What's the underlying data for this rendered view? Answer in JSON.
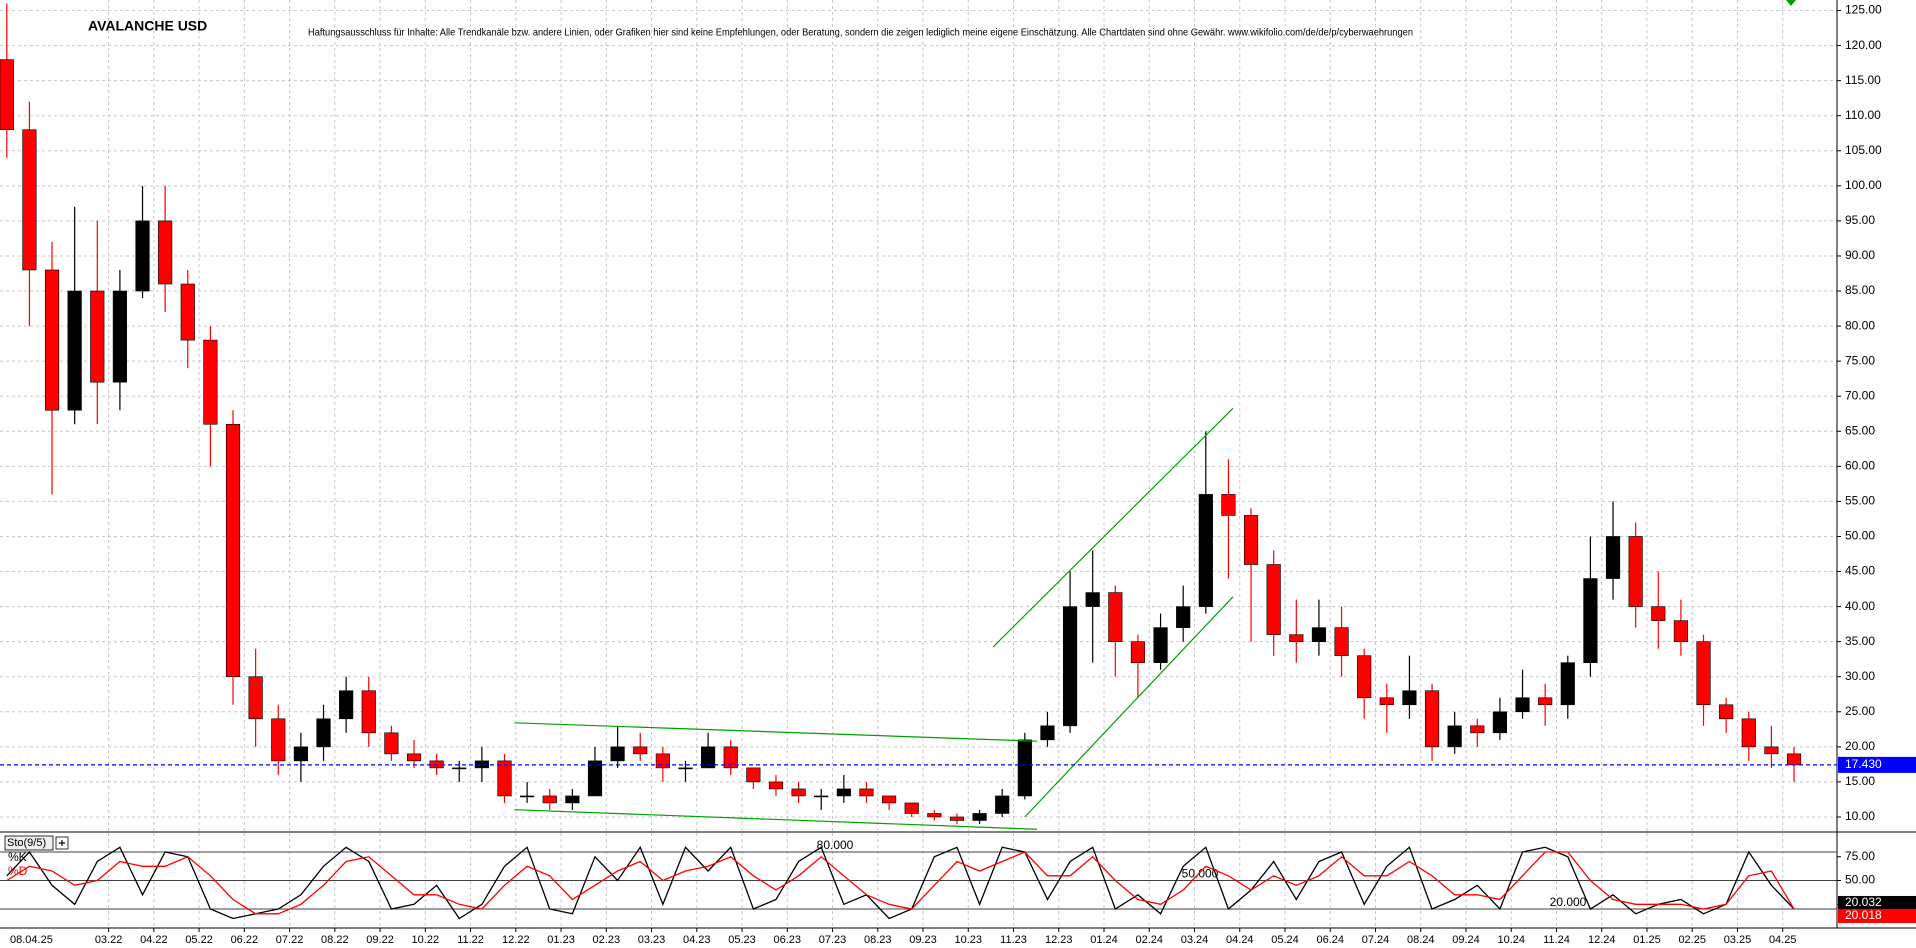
{
  "chart_data": {
    "type": "candlestick",
    "title": "AVALANCHE USD",
    "disclaimer": "Haftungsausschluss für Inhalte: Alle Trendkanäle bzw. andere Linien, oder Grafiken hier sind keine Empfehlungen, oder Beratung, sondern die zeigen lediglich meine eigene Einschätzung. Alle Chartdaten sind ohne Gewähr. www.wikifolio.com/de/de/p/cyberwaehrungen",
    "current_date": "08.04.25",
    "x": [
      -0.25,
      0.25,
      0.75,
      1.25,
      1.75,
      2.25,
      2.75,
      3.25,
      3.75,
      4.25,
      4.75,
      5.25,
      5.75,
      6.25,
      6.75,
      7.25,
      7.75,
      8.25,
      8.75,
      9.25,
      9.75,
      10.25,
      10.75,
      11.25,
      11.75,
      12.25,
      12.75,
      13.25,
      13.75,
      14.25,
      14.75,
      15.25,
      15.75,
      16.25,
      16.75,
      17.25,
      17.75,
      18.25,
      18.75,
      19.25,
      19.75,
      20.25,
      20.75,
      21.25,
      21.75,
      22.25,
      22.75,
      23.25,
      23.75,
      24.25,
      24.75,
      25.25,
      25.75,
      26.25,
      26.75,
      27.25,
      27.75,
      28.25,
      28.75,
      29.25,
      29.75,
      30.25,
      30.75,
      31.25,
      31.75,
      32.25,
      32.75,
      33.25,
      33.75,
      34.25,
      34.75,
      35.25,
      35.75,
      36.25,
      36.75,
      37.25,
      37.75,
      38.25,
      38.75,
      39.25
    ],
    "open": [
      118,
      108,
      88,
      68,
      85,
      72,
      85,
      95,
      86,
      78,
      66,
      30,
      24,
      18,
      20,
      24,
      28,
      22,
      19,
      18,
      17,
      17,
      18,
      13,
      13,
      12,
      13,
      18,
      20,
      19,
      17,
      17,
      20,
      17,
      15,
      14,
      13,
      13,
      14,
      13,
      12,
      10.5,
      10,
      9.5,
      10.5,
      13,
      21,
      23,
      40,
      42,
      35,
      32,
      37,
      40,
      56,
      53,
      46,
      36,
      35,
      37,
      33,
      27,
      26,
      28,
      20,
      23,
      22,
      25,
      27,
      26,
      32,
      44,
      50,
      40,
      38,
      35,
      26,
      24,
      20,
      19
    ],
    "high": [
      126,
      112,
      92,
      97,
      95,
      88,
      100,
      100,
      88,
      80,
      68,
      34,
      26,
      22,
      26,
      30,
      30,
      23,
      21,
      19,
      18,
      20,
      19,
      15,
      14,
      14,
      20,
      23,
      22,
      20,
      18,
      22,
      21,
      17,
      16,
      15,
      14,
      16,
      15,
      13,
      12,
      11,
      10.5,
      11,
      14,
      22,
      25,
      45,
      48,
      43,
      36,
      39,
      43,
      65,
      61,
      54,
      48,
      41,
      41,
      40,
      34,
      29,
      33,
      29,
      25,
      24,
      27,
      31,
      29,
      33,
      50,
      55,
      52,
      45,
      41,
      36,
      27,
      25,
      23,
      20
    ],
    "low": [
      104,
      80,
      56,
      66,
      66,
      68,
      84,
      82,
      74,
      60,
      26,
      20,
      16,
      15,
      18,
      22,
      20,
      18,
      17,
      16,
      15,
      15,
      12,
      12,
      11,
      11,
      13,
      17,
      18,
      15,
      15,
      17,
      16,
      14,
      13,
      12,
      11,
      12,
      12,
      11,
      10,
      9.5,
      9,
      9,
      10,
      12.5,
      20,
      22,
      32,
      30,
      27,
      31,
      35,
      39,
      44,
      35,
      33,
      32,
      33,
      30,
      24,
      22,
      24,
      18,
      19,
      20,
      21,
      24,
      23,
      24,
      30,
      41,
      37,
      34,
      33,
      23,
      22,
      18,
      17,
      15
    ],
    "close": [
      108,
      88,
      68,
      85,
      72,
      85,
      95,
      86,
      78,
      66,
      30,
      24,
      18,
      20,
      24,
      28,
      22,
      19,
      18,
      17,
      17,
      18,
      13,
      13,
      12,
      13,
      18,
      20,
      19,
      17,
      17,
      20,
      17,
      15,
      14,
      13,
      13,
      14,
      13,
      12,
      10.5,
      10,
      9.5,
      10.5,
      13,
      21,
      23,
      40,
      42,
      35,
      32,
      37,
      40,
      56,
      53,
      46,
      36,
      35,
      37,
      33,
      27,
      26,
      28,
      20,
      23,
      22,
      25,
      27,
      26,
      32,
      44,
      50,
      40,
      38,
      35,
      26,
      24,
      20,
      19,
      17.43
    ],
    "up_color": "#000000",
    "down_color": "#ff0000",
    "xlim": [
      -0.4,
      40.2
    ],
    "xticks": [
      {
        "value": 2,
        "label": "03.22"
      },
      {
        "value": 3,
        "label": "04.22"
      },
      {
        "value": 4,
        "label": "05.22"
      },
      {
        "value": 5,
        "label": "06.22"
      },
      {
        "value": 6,
        "label": "07.22"
      },
      {
        "value": 7,
        "label": "08.22"
      },
      {
        "value": 8,
        "label": "09.22"
      },
      {
        "value": 9,
        "label": "10.22"
      },
      {
        "value": 10,
        "label": "11.22"
      },
      {
        "value": 11,
        "label": "12.22"
      },
      {
        "value": 12,
        "label": "01.23"
      },
      {
        "value": 13,
        "label": "02.23"
      },
      {
        "value": 14,
        "label": "03.23"
      },
      {
        "value": 15,
        "label": "04.23"
      },
      {
        "value": 16,
        "label": "05.23"
      },
      {
        "value": 17,
        "label": "06.23"
      },
      {
        "value": 18,
        "label": "07.23"
      },
      {
        "value": 19,
        "label": "08.23"
      },
      {
        "value": 20,
        "label": "09.23"
      },
      {
        "value": 21,
        "label": "10.23"
      },
      {
        "value": 22,
        "label": "11.23"
      },
      {
        "value": 23,
        "label": "12.23"
      },
      {
        "value": 24,
        "label": "01.24"
      },
      {
        "value": 25,
        "label": "02.24"
      },
      {
        "value": 26,
        "label": "03.24"
      },
      {
        "value": 27,
        "label": "04.24"
      },
      {
        "value": 28,
        "label": "05.24"
      },
      {
        "value": 29,
        "label": "06.24"
      },
      {
        "value": 30,
        "label": "07.24"
      },
      {
        "value": 31,
        "label": "08.24"
      },
      {
        "value": 32,
        "label": "09.24"
      },
      {
        "value": 33,
        "label": "10.24"
      },
      {
        "value": 34,
        "label": "11.24"
      },
      {
        "value": 35,
        "label": "12.24"
      },
      {
        "value": 36,
        "label": "01.25"
      },
      {
        "value": 37,
        "label": "02.25"
      },
      {
        "value": 38,
        "label": "03.25"
      },
      {
        "value": 39,
        "label": "04.25"
      }
    ],
    "ylim": [
      8,
      126.5
    ],
    "yticks": [
      {
        "value": 10,
        "label": "10.00"
      },
      {
        "value": 15,
        "label": "15.00"
      },
      {
        "value": 20,
        "label": "20.00"
      },
      {
        "value": 25,
        "label": "25.00"
      },
      {
        "value": 30,
        "label": "30.00"
      },
      {
        "value": 35,
        "label": "35.00"
      },
      {
        "value": 40,
        "label": "40.00"
      },
      {
        "value": 45,
        "label": "45.00"
      },
      {
        "value": 50,
        "label": "50.00"
      },
      {
        "value": 55,
        "label": "55.00"
      },
      {
        "value": 60,
        "label": "60.00"
      },
      {
        "value": 65,
        "label": "65.00"
      },
      {
        "value": 70,
        "label": "70.00"
      },
      {
        "value": 75,
        "label": "75.00"
      },
      {
        "value": 80,
        "label": "80.00"
      },
      {
        "value": 85,
        "label": "85.00"
      },
      {
        "value": 90,
        "label": "90.00"
      },
      {
        "value": 95,
        "label": "95.00"
      },
      {
        "value": 100,
        "label": "100.00"
      },
      {
        "value": 105,
        "label": "105.00"
      },
      {
        "value": 110,
        "label": "110.00"
      },
      {
        "value": 115,
        "label": "115.00"
      },
      {
        "value": 120,
        "label": "120.00"
      },
      {
        "value": 125,
        "label": "125.00"
      }
    ],
    "grid": true,
    "current_price": {
      "value": 17.43,
      "label": "17.430",
      "color": "#0000ff"
    },
    "trendlines": [
      [
        10.97,
        23.43,
        22.52,
        20.81
      ],
      [
        10.97,
        11.04,
        22.52,
        8.25
      ],
      [
        21.55,
        34.25,
        26.85,
        68.28
      ],
      [
        22.25,
        10.0,
        26.85,
        41.4
      ]
    ],
    "trend_color": "#00a000",
    "indicator": {
      "name": "Sto(9/5)",
      "ylim": [
        0,
        100
      ],
      "yticks": [
        {
          "value": 25,
          "label": "25.00"
        },
        {
          "value": 50,
          "label": "50.00"
        },
        {
          "value": 75,
          "label": "75.00"
        }
      ],
      "levels": [
        {
          "value": 80,
          "label": "80.000"
        },
        {
          "value": 50,
          "label": "50.000"
        },
        {
          "value": 20,
          "label": "20.000"
        }
      ],
      "series": [
        {
          "name": "%K",
          "color": "#000000",
          "values": [
            55,
            80,
            45,
            25,
            70,
            85,
            35,
            80,
            75,
            20,
            10,
            15,
            20,
            35,
            65,
            85,
            70,
            20,
            25,
            45,
            10,
            25,
            65,
            85,
            20,
            15,
            75,
            50,
            85,
            25,
            85,
            60,
            85,
            20,
            30,
            70,
            85,
            25,
            35,
            10,
            20,
            75,
            85,
            25,
            85,
            80,
            30,
            70,
            85,
            20,
            35,
            15,
            65,
            85,
            20,
            40,
            70,
            30,
            70,
            80,
            25,
            65,
            85,
            20,
            30,
            45,
            20,
            80,
            85,
            75,
            20,
            35,
            15,
            25,
            30,
            15,
            25,
            80,
            45,
            20.032
          ]
        },
        {
          "name": "%D",
          "color": "#ff0000",
          "values": [
            50,
            65,
            60,
            45,
            50,
            70,
            65,
            65,
            75,
            55,
            30,
            15,
            15,
            25,
            45,
            70,
            75,
            55,
            35,
            35,
            25,
            20,
            45,
            65,
            55,
            30,
            45,
            60,
            70,
            50,
            60,
            65,
            75,
            55,
            40,
            55,
            75,
            55,
            35,
            25,
            20,
            45,
            70,
            60,
            70,
            80,
            55,
            55,
            75,
            50,
            30,
            25,
            40,
            65,
            55,
            40,
            55,
            45,
            55,
            75,
            55,
            55,
            70,
            55,
            35,
            35,
            30,
            55,
            80,
            80,
            50,
            30,
            25,
            25,
            25,
            20,
            25,
            55,
            60,
            20.018
          ]
        }
      ]
    }
  }
}
